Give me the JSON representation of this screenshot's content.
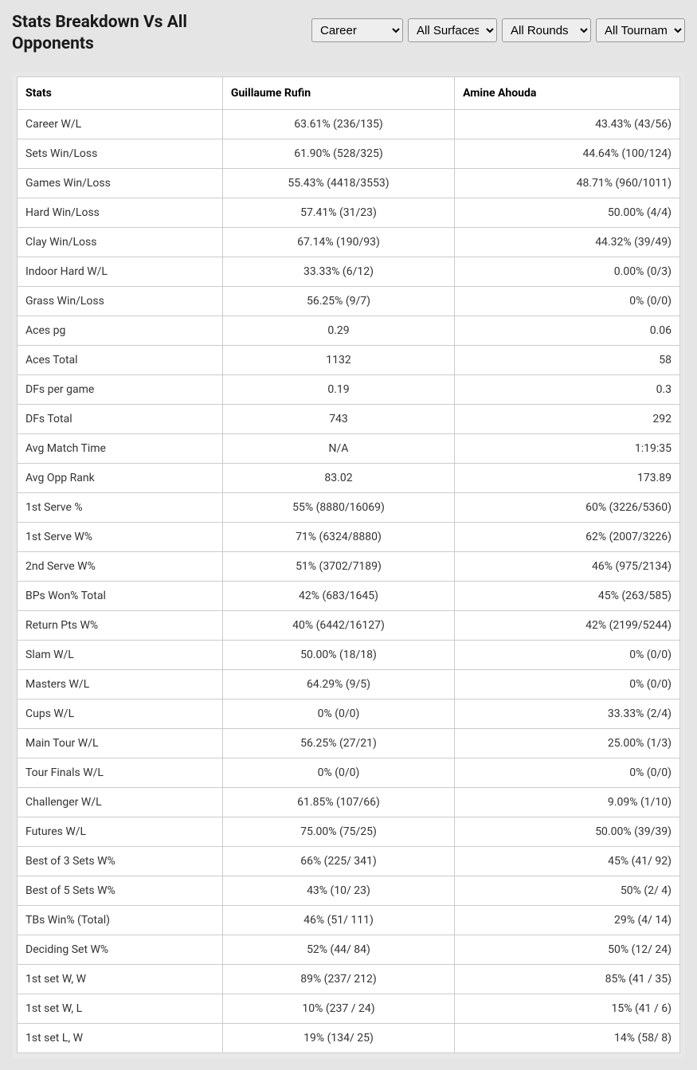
{
  "title": "Stats Breakdown Vs All Opponents",
  "filters": {
    "career": {
      "selected": "Career",
      "options": [
        "Career"
      ]
    },
    "surface": {
      "selected": "All Surfaces",
      "options": [
        "All Surfaces"
      ]
    },
    "rounds": {
      "selected": "All Rounds",
      "options": [
        "All Rounds"
      ]
    },
    "tournaments": {
      "selected": "All Tournaments",
      "options": [
        "All Tournaments"
      ]
    }
  },
  "columns": {
    "stats": "Stats",
    "p1": "Guillaume Rufin",
    "p2": "Amine Ahouda"
  },
  "rows": [
    {
      "label": "Career W/L",
      "p1": "63.61% (236/135)",
      "p2": "43.43% (43/56)"
    },
    {
      "label": "Sets Win/Loss",
      "p1": "61.90% (528/325)",
      "p2": "44.64% (100/124)"
    },
    {
      "label": "Games Win/Loss",
      "p1": "55.43% (4418/3553)",
      "p2": "48.71% (960/1011)"
    },
    {
      "label": "Hard Win/Loss",
      "p1": "57.41% (31/23)",
      "p2": "50.00% (4/4)"
    },
    {
      "label": "Clay Win/Loss",
      "p1": "67.14% (190/93)",
      "p2": "44.32% (39/49)"
    },
    {
      "label": "Indoor Hard W/L",
      "p1": "33.33% (6/12)",
      "p2": "0.00% (0/3)"
    },
    {
      "label": "Grass Win/Loss",
      "p1": "56.25% (9/7)",
      "p2": "0% (0/0)"
    },
    {
      "label": "Aces pg",
      "p1": "0.29",
      "p2": "0.06"
    },
    {
      "label": "Aces Total",
      "p1": "1132",
      "p2": "58"
    },
    {
      "label": "DFs per game",
      "p1": "0.19",
      "p2": "0.3"
    },
    {
      "label": "DFs Total",
      "p1": "743",
      "p2": "292"
    },
    {
      "label": "Avg Match Time",
      "p1": "N/A",
      "p2": "1:19:35"
    },
    {
      "label": "Avg Opp Rank",
      "p1": "83.02",
      "p2": "173.89"
    },
    {
      "label": "1st Serve %",
      "p1": "55% (8880/16069)",
      "p2": "60% (3226/5360)"
    },
    {
      "label": "1st Serve W%",
      "p1": "71% (6324/8880)",
      "p2": "62% (2007/3226)"
    },
    {
      "label": "2nd Serve W%",
      "p1": "51% (3702/7189)",
      "p2": "46% (975/2134)"
    },
    {
      "label": "BPs Won% Total",
      "p1": "42% (683/1645)",
      "p2": "45% (263/585)"
    },
    {
      "label": "Return Pts W%",
      "p1": "40% (6442/16127)",
      "p2": "42% (2199/5244)"
    },
    {
      "label": "Slam W/L",
      "p1": "50.00% (18/18)",
      "p2": "0% (0/0)"
    },
    {
      "label": "Masters W/L",
      "p1": "64.29% (9/5)",
      "p2": "0% (0/0)"
    },
    {
      "label": "Cups W/L",
      "p1": "0% (0/0)",
      "p2": "33.33% (2/4)"
    },
    {
      "label": "Main Tour W/L",
      "p1": "56.25% (27/21)",
      "p2": "25.00% (1/3)"
    },
    {
      "label": "Tour Finals W/L",
      "p1": "0% (0/0)",
      "p2": "0% (0/0)"
    },
    {
      "label": "Challenger W/L",
      "p1": "61.85% (107/66)",
      "p2": "9.09% (1/10)"
    },
    {
      "label": "Futures W/L",
      "p1": "75.00% (75/25)",
      "p2": "50.00% (39/39)"
    },
    {
      "label": "Best of 3 Sets W%",
      "p1": "66% (225/ 341)",
      "p2": "45% (41/ 92)"
    },
    {
      "label": "Best of 5 Sets W%",
      "p1": "43% (10/ 23)",
      "p2": "50% (2/ 4)"
    },
    {
      "label": "TBs Win% (Total)",
      "p1": "46% (51/ 111)",
      "p2": "29% (4/ 14)"
    },
    {
      "label": "Deciding Set W%",
      "p1": "52% (44/ 84)",
      "p2": "50% (12/ 24)"
    },
    {
      "label": "1st set W, W",
      "p1": "89% (237/ 212)",
      "p2": "85% (41 / 35)"
    },
    {
      "label": "1st set W, L",
      "p1": "10% (237 / 24)",
      "p2": "15% (41 / 6)"
    },
    {
      "label": "1st set L, W",
      "p1": "19% (134/ 25)",
      "p2": "14% (58/ 8)"
    }
  ],
  "colors": {
    "page_bg": "#e5e5e5",
    "card_bg": "#e8e8e8",
    "table_bg": "#ffffff",
    "border": "#cccccc",
    "text": "#333333",
    "title": "#1a1a1a"
  }
}
